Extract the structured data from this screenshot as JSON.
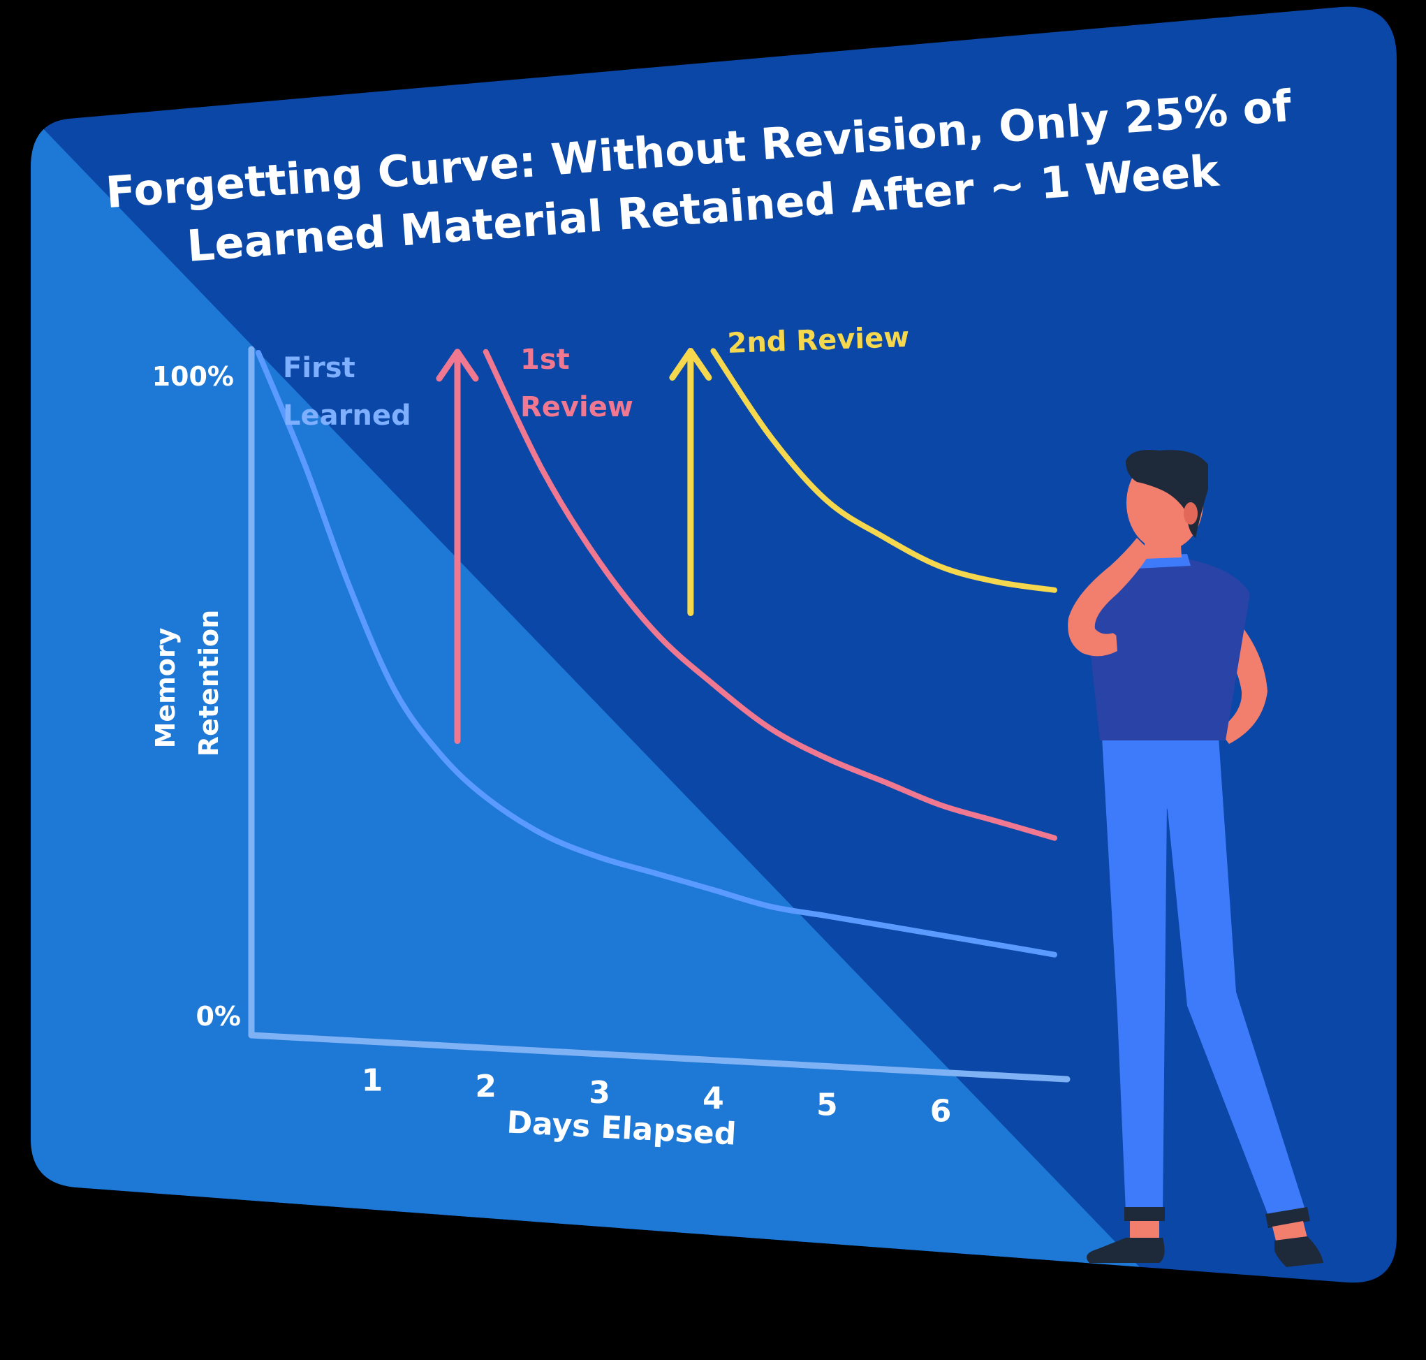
{
  "colors": {
    "backdrop": "#000000",
    "card_dark": "#0B47A6",
    "card_light": "#1E78D6",
    "text": "#FFFFFF",
    "axis": "#7FB1F5"
  },
  "illustration": {
    "person": "thinking-man-figure"
  },
  "chart_data": {
    "type": "line",
    "title_lines": [
      "Forgetting Curve: Without Revision, Only 25% of",
      "Learned Material Retained After ~ 1 Week"
    ],
    "xlabel": "Days Elapsed",
    "ylabel_lines": [
      "Memory",
      "Retention"
    ],
    "y_ticks": [
      "100%",
      "0%"
    ],
    "x_ticks": [
      "1",
      "2",
      "3",
      "4",
      "5",
      "6"
    ],
    "xlim": [
      0,
      7
    ],
    "ylim": [
      0,
      100
    ],
    "grid": false,
    "series": [
      {
        "name_lines": [
          "First",
          "Learned"
        ],
        "color": "#5B9BFF",
        "x": [
          0,
          0.4,
          0.8,
          1.2,
          1.6,
          2,
          2.5,
          3,
          3.5,
          4,
          4.5,
          5,
          5.5,
          6,
          6.5,
          7
        ],
        "values": [
          100,
          84,
          66,
          51,
          42,
          36,
          31,
          28,
          26,
          24,
          22,
          21,
          20,
          19,
          18,
          17
        ]
      },
      {
        "name_lines": [
          "1st",
          "Review"
        ],
        "color": "#F07891",
        "x": [
          2,
          2.5,
          3,
          3.5,
          4,
          4.5,
          5,
          5.5,
          6,
          6.5,
          7
        ],
        "values": [
          100,
          83,
          70,
          60,
          53,
          47,
          43,
          40,
          37,
          35,
          33
        ],
        "arrow": {
          "x": 1.75,
          "from": 44,
          "to": 100
        }
      },
      {
        "name_lines": [
          "2nd Review"
        ],
        "color": "#F5D84E",
        "x": [
          4,
          4.5,
          5,
          5.5,
          6,
          6.5,
          7
        ],
        "values": [
          100,
          88,
          79,
          74,
          70,
          68,
          67
        ],
        "arrow": {
          "x": 3.8,
          "from": 63,
          "to": 100
        }
      }
    ]
  }
}
